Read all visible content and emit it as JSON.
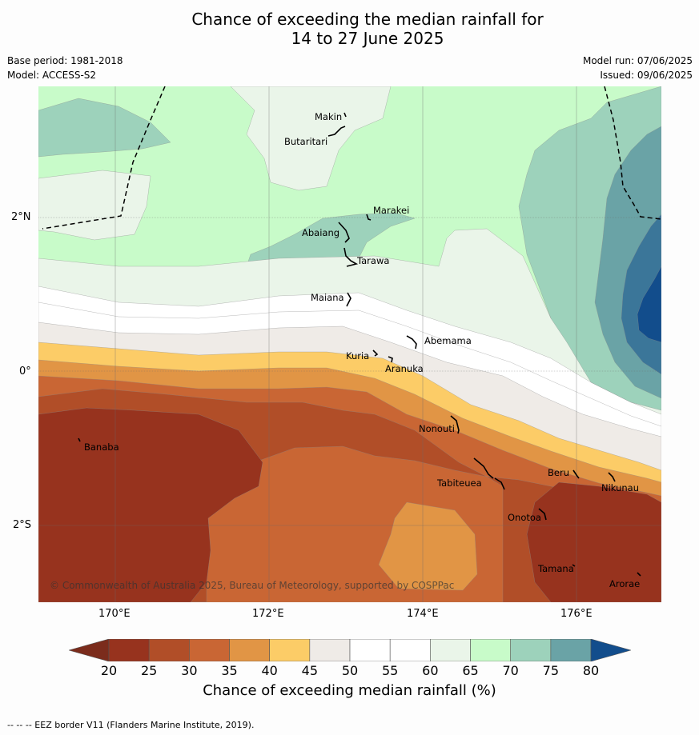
{
  "title": {
    "line1": "Chance of exceeding the median rainfall for",
    "line2": "14 to 27 June 2025"
  },
  "meta": {
    "base_period": "Base period: 1981-2018",
    "model": "Model: ACCESS-S2",
    "model_run": "Model run: 07/06/2025",
    "issued": "Issued: 09/06/2025"
  },
  "map": {
    "lat_labels": [
      "2°N",
      "0°",
      "2°S"
    ],
    "lon_labels": [
      "170°E",
      "172°E",
      "174°E",
      "176°E"
    ],
    "copyright": "© Commonwealth of Australia 2025, Bureau of Meteorology, supported by COSPPac",
    "places": [
      {
        "name": "Makin"
      },
      {
        "name": "Butaritari"
      },
      {
        "name": "Marakei"
      },
      {
        "name": "Abaiang"
      },
      {
        "name": "Tarawa"
      },
      {
        "name": "Maiana"
      },
      {
        "name": "Abemama"
      },
      {
        "name": "Kuria"
      },
      {
        "name": "Aranuka"
      },
      {
        "name": "Banaba"
      },
      {
        "name": "Nonouti"
      },
      {
        "name": "Tabiteuea"
      },
      {
        "name": "Beru"
      },
      {
        "name": "Nikunau"
      },
      {
        "name": "Onotoa"
      },
      {
        "name": "Tamana"
      },
      {
        "name": "Arorae"
      }
    ],
    "colors": {
      "lt20": "#7b2c1c",
      "c20": "#97331e",
      "c25": "#b14e28",
      "c30": "#c96634",
      "c35": "#e19545",
      "c40": "#fccc67",
      "c45": "#efebe7",
      "c50": "#ffffff",
      "c55": "#ffffff",
      "c60": "#eaf5e9",
      "c65": "#c8fbc9",
      "c70": "#9dd2bb",
      "c75": "#6aa3a6",
      "c80": "#3b7699",
      "gt80": "#124d8c"
    }
  },
  "colorbar": {
    "ticks": [
      "20",
      "25",
      "30",
      "35",
      "40",
      "45",
      "50",
      "55",
      "60",
      "65",
      "70",
      "75",
      "80"
    ],
    "label": "Chance of exceeding median rainfall (%)"
  },
  "footer": "--  --  -- EEZ border V11 (Flanders Marine Institute, 2019)."
}
